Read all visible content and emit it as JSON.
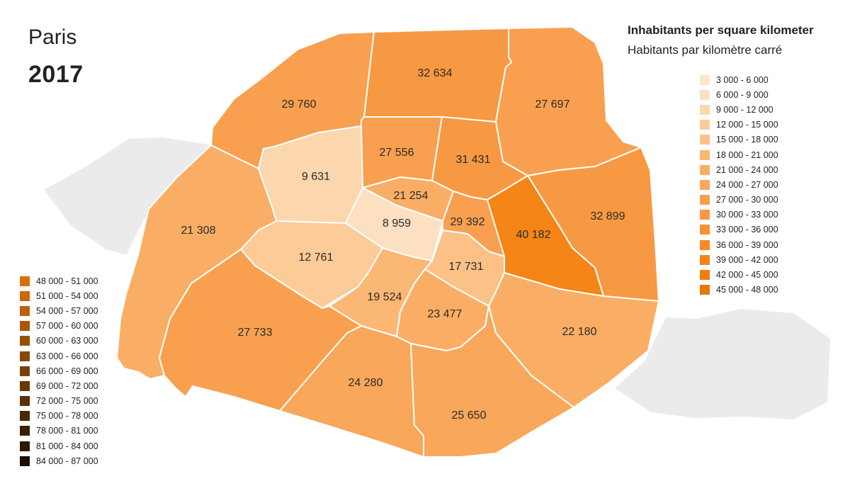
{
  "title": {
    "city": "Paris",
    "year": "2017"
  },
  "legend": {
    "title": "Inhabitants per square kilometer",
    "subtitle": "Habitants par kilomètre carré",
    "right_classes": [
      {
        "label": "3 000 - 6 000",
        "color": "#fde7d1"
      },
      {
        "label": "6 000 - 9 000",
        "color": "#fde0c2"
      },
      {
        "label": "9 000 - 12 000",
        "color": "#fcd6ad"
      },
      {
        "label": "12 000 - 15 000",
        "color": "#fccb98"
      },
      {
        "label": "15 000 - 18 000",
        "color": "#fbc186"
      },
      {
        "label": "18 000 - 21 000",
        "color": "#fbb774"
      },
      {
        "label": "21 000 - 24 000",
        "color": "#faae65"
      },
      {
        "label": "24 000 - 27 000",
        "color": "#f9a75a"
      },
      {
        "label": "27 000 - 30 000",
        "color": "#f8a04f"
      },
      {
        "label": "30 000 - 33 000",
        "color": "#f79942"
      },
      {
        "label": "33 000 - 36 000",
        "color": "#f69134"
      },
      {
        "label": "36 000 - 39 000",
        "color": "#f58a26"
      },
      {
        "label": "39 000 - 42 000",
        "color": "#f58516"
      },
      {
        "label": "42 000 - 45 000",
        "color": "#ee7d0b"
      },
      {
        "label": "45 000 - 48 000",
        "color": "#e5780c"
      }
    ],
    "left_classes": [
      {
        "label": "48 000 - 51 000",
        "color": "#d9700d"
      },
      {
        "label": "51 000 - 54 000",
        "color": "#cb680c"
      },
      {
        "label": "54 000 - 57 000",
        "color": "#bb600b"
      },
      {
        "label": "57 000 - 60 000",
        "color": "#aa570a"
      },
      {
        "label": "60 000 - 63 000",
        "color": "#9a4f09"
      },
      {
        "label": "63 000 - 66 000",
        "color": "#8a4708"
      },
      {
        "label": "66 000 - 69 000",
        "color": "#7a3f07"
      },
      {
        "label": "69 000 - 72 000",
        "color": "#6a3706"
      },
      {
        "label": "72 000 - 75 000",
        "color": "#5a2f05"
      },
      {
        "label": "75 000 - 78 000",
        "color": "#4a2704"
      },
      {
        "label": "78 000 - 81 000",
        "color": "#3b1f03"
      },
      {
        "label": "81 000 - 84 000",
        "color": "#2b1702"
      },
      {
        "label": "84 000 - 87 000",
        "color": "#1a0e01"
      }
    ]
  },
  "chart_data": {
    "type": "choropleth",
    "unit": "inhabitants per km²",
    "regions": [
      {
        "id": "1e",
        "density": 8959,
        "label": "8 959",
        "color": "#fde0c2"
      },
      {
        "id": "2e",
        "density": 21254,
        "label": "21 254",
        "color": "#faae65"
      },
      {
        "id": "3e",
        "density": 29392,
        "label": "29 392",
        "color": "#f8a04f"
      },
      {
        "id": "4e",
        "density": 17731,
        "label": "17 731",
        "color": "#fbc186"
      },
      {
        "id": "5e",
        "density": 19524,
        "label": "19 524",
        "color": "#fbb774"
      },
      {
        "id": "6e",
        "density": 12761,
        "label": "12 761",
        "color": "#fccb98"
      },
      {
        "id": "7e",
        "density": 9631,
        "label": "9 631",
        "color": "#fcd6ad"
      },
      {
        "id": "8e",
        "density": 21308,
        "label": "21 308",
        "color": "#faae65"
      },
      {
        "id": "9e",
        "density": 27556,
        "label": "27 556",
        "color": "#f8a04f"
      },
      {
        "id": "10e",
        "density": 31431,
        "label": "31 431",
        "color": "#f79942"
      },
      {
        "id": "11e",
        "density": 40182,
        "label": "40 182",
        "color": "#f58516"
      },
      {
        "id": "12e",
        "density": 32899,
        "label": "32 899",
        "color": "#f79942"
      },
      {
        "id": "13e",
        "density": 22180,
        "label": "22 180",
        "color": "#faae65"
      },
      {
        "id": "14e",
        "density": 23477,
        "label": "23 477",
        "color": "#faae65"
      },
      {
        "id": "15e",
        "density": 25650,
        "label": "25 650",
        "color": "#f9a75a"
      },
      {
        "id": "16e",
        "density": 24280,
        "label": "24 280",
        "color": "#f9a75a"
      },
      {
        "id": "17e",
        "density": 27733,
        "label": "27 733",
        "color": "#f8a04f"
      },
      {
        "id": "18e",
        "density": 21308,
        "label": "21 308",
        "color": "#faae65"
      },
      {
        "id": "19e",
        "density": 29760,
        "label": "29 760",
        "color": "#f8a04f"
      },
      {
        "id": "20e",
        "density": 32634,
        "label": "32 634",
        "color": "#f79942"
      },
      {
        "id": "21e",
        "density": 27697,
        "label": "27 697",
        "color": "#f8a04f"
      }
    ]
  }
}
